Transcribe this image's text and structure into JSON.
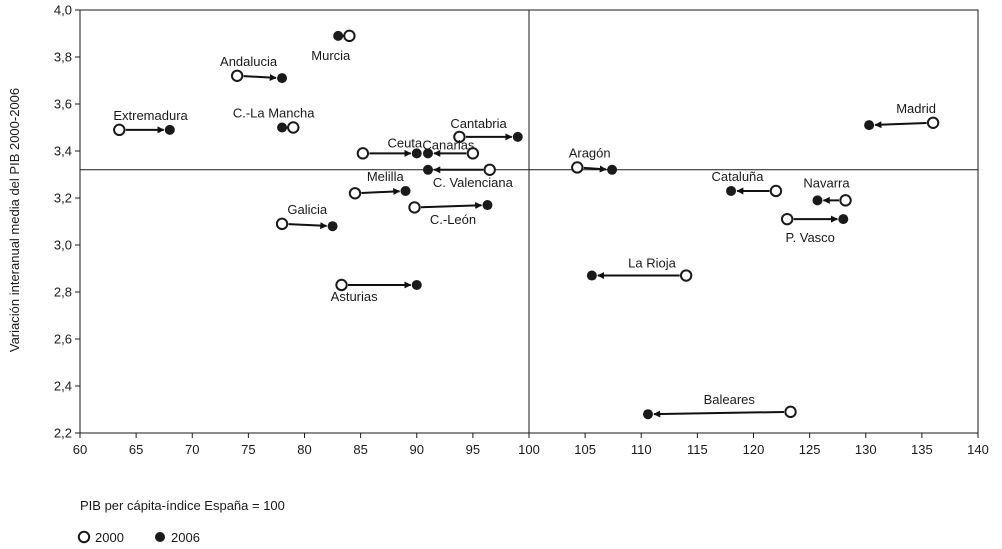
{
  "chart_data": {
    "type": "scatter",
    "title": "",
    "xlabel": "PIB per cápita-índice España = 100",
    "ylabel": "Variación interanual media del PIB 2000-2006",
    "xlim": [
      60,
      140
    ],
    "ylim": [
      2.2,
      4.0
    ],
    "x_ticks": [
      "60",
      "65",
      "70",
      "75",
      "80",
      "85",
      "90",
      "95",
      "100",
      "105",
      "110",
      "115",
      "120",
      "125",
      "130",
      "135",
      "140"
    ],
    "y_ticks": [
      "2,2",
      "2,4",
      "2,6",
      "2,8",
      "3,0",
      "3,2",
      "3,4",
      "3,6",
      "3,8",
      "4,0"
    ],
    "reference_lines": {
      "x": 100,
      "y": 3.32
    },
    "grid": false,
    "legend": {
      "position": "bottom-left",
      "series": [
        {
          "name": "2000",
          "marker": "open-circle"
        },
        {
          "name": "2006",
          "marker": "filled-circle"
        }
      ]
    },
    "points": [
      {
        "label": "Murcia",
        "x2000": 84.0,
        "x2006": 83.0,
        "y2000": 3.89,
        "y2006": 3.89
      },
      {
        "label": "Andalucia",
        "x2000": 74.0,
        "x2006": 78.0,
        "y2000": 3.72,
        "y2006": 3.71
      },
      {
        "label": "Extremadura",
        "x2000": 63.5,
        "x2006": 68.0,
        "y2000": 3.49,
        "y2006": 3.49
      },
      {
        "label": "C.-La Mancha",
        "x2000": 79.0,
        "x2006": 78.0,
        "y2000": 3.5,
        "y2006": 3.5
      },
      {
        "label": "Cantabria",
        "x2000": 93.8,
        "x2006": 99.0,
        "y2000": 3.46,
        "y2006": 3.46
      },
      {
        "label": "Ceuta",
        "x2000": 85.2,
        "x2006": 90.0,
        "y2000": 3.39,
        "y2006": 3.39
      },
      {
        "label": "Canarias",
        "x2000": 95.0,
        "x2006": 91.0,
        "y2000": 3.39,
        "y2006": 3.39
      },
      {
        "label": "C. Valenciana",
        "x2000": 96.5,
        "x2006": 91.0,
        "y2000": 3.32,
        "y2006": 3.32
      },
      {
        "label": "Melilla",
        "x2000": 84.5,
        "x2006": 89.0,
        "y2000": 3.22,
        "y2006": 3.23
      },
      {
        "label": "C.-León",
        "x2000": 89.8,
        "x2006": 96.3,
        "y2000": 3.16,
        "y2006": 3.17
      },
      {
        "label": "Galicia",
        "x2000": 78.0,
        "x2006": 82.5,
        "y2000": 3.09,
        "y2006": 3.08
      },
      {
        "label": "Asturias",
        "x2000": 83.3,
        "x2006": 90.0,
        "y2000": 2.83,
        "y2006": 2.83
      },
      {
        "label": "Aragón",
        "x2000": 104.3,
        "x2006": 107.4,
        "y2000": 3.33,
        "y2006": 3.32
      },
      {
        "label": "La Rioja",
        "x2000": 114.0,
        "x2006": 105.6,
        "y2000": 2.87,
        "y2006": 2.87
      },
      {
        "label": "Baleares",
        "x2000": 123.3,
        "x2006": 110.6,
        "y2000": 2.29,
        "y2006": 2.28
      },
      {
        "label": "Cataluña",
        "x2000": 122.0,
        "x2006": 118.0,
        "y2000": 3.23,
        "y2006": 3.23
      },
      {
        "label": "Navarra",
        "x2000": 128.2,
        "x2006": 125.7,
        "y2000": 3.19,
        "y2006": 3.19
      },
      {
        "label": "P. Vasco",
        "x2000": 123.0,
        "x2006": 128.0,
        "y2000": 3.11,
        "y2006": 3.11
      },
      {
        "label": "Madrid",
        "x2000": 136.0,
        "x2006": 130.3,
        "y2000": 3.52,
        "y2006": 3.51
      }
    ]
  }
}
